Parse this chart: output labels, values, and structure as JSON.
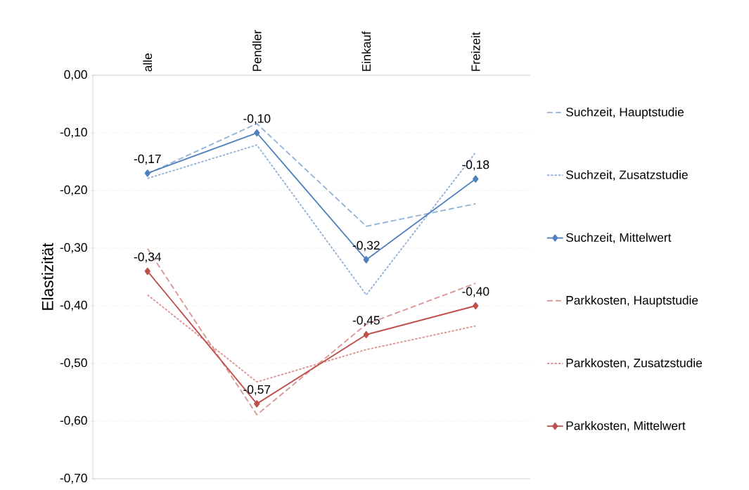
{
  "chart_data": {
    "type": "line",
    "ylabel": "Elastizität",
    "categories": [
      "alle",
      "Pendler",
      "Einkauf",
      "Freizeit"
    ],
    "ylim": [
      -0.7,
      0
    ],
    "yticks": [
      {
        "value": 0,
        "label": "0,00"
      },
      {
        "value": -0.1,
        "label": "-0,10"
      },
      {
        "value": -0.2,
        "label": "-0,20"
      },
      {
        "value": -0.3,
        "label": "-0,30"
      },
      {
        "value": -0.4,
        "label": "-0,40"
      },
      {
        "value": -0.5,
        "label": "-0,50"
      },
      {
        "value": -0.6,
        "label": "-0,60"
      },
      {
        "value": -0.7,
        "label": "-0,70"
      }
    ],
    "grid": "y",
    "legend": "right",
    "series": [
      {
        "name": "Suchzeit, Hauptstudie",
        "color": "#95b3d7",
        "line_style": "dashed",
        "marker": "none",
        "values": [
          -0.171,
          -0.084,
          -0.262,
          -0.223
        ]
      },
      {
        "name": "Suchzeit, Zusatzstudie",
        "color": "#95b3d7",
        "line_style": "dotted",
        "marker": "none",
        "values": [
          -0.179,
          -0.121,
          -0.381,
          -0.134
        ]
      },
      {
        "name": "Suchzeit, Mittelwert",
        "color": "#4f81bd",
        "line_style": "solid",
        "marker": "diamond",
        "values": [
          -0.17,
          -0.1,
          -0.32,
          -0.18
        ],
        "value_labels": [
          "-0,17",
          "-0,10",
          "-0,32",
          "-0,18"
        ]
      },
      {
        "name": "Parkkosten, Hauptstudie",
        "color": "#d99694",
        "line_style": "dashed",
        "marker": "none",
        "values": [
          -0.301,
          -0.589,
          -0.432,
          -0.361
        ]
      },
      {
        "name": "Parkkosten, Zusatzstudie",
        "color": "#d99694",
        "line_style": "dotted",
        "marker": "none",
        "values": [
          -0.381,
          -0.532,
          -0.476,
          -0.435
        ]
      },
      {
        "name": "Parkkosten, Mittelwert",
        "color": "#c0504d",
        "line_style": "solid",
        "marker": "diamond",
        "values": [
          -0.34,
          -0.57,
          -0.45,
          -0.4
        ],
        "value_labels": [
          "-0,34",
          "-0,57",
          "-0,45",
          "-0,40"
        ]
      }
    ]
  }
}
